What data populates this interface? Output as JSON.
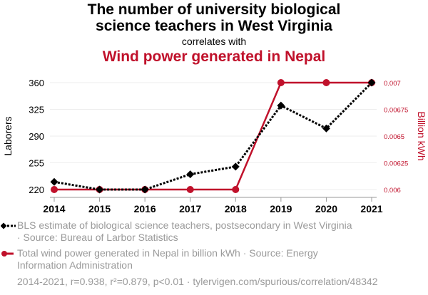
{
  "header": {
    "title_line1": "The number of university biological",
    "title_line2": "science teachers in West Virginia",
    "subtitle": "correlates with",
    "title2": "Wind power generated in Nepal"
  },
  "colors": {
    "series1": "#000000",
    "series2": "#c0112b",
    "grid": "#eeeeee",
    "muted": "#9a9a9a"
  },
  "chart_data": {
    "type": "line",
    "x": [
      "2014",
      "2015",
      "2016",
      "2017",
      "2018",
      "2019",
      "2020",
      "2021"
    ],
    "series": [
      {
        "name": "BLS estimate of biological science teachers, postsecondary in West Virginia",
        "axis": "left",
        "style": "dotted-diamond",
        "values": [
          230,
          220,
          220,
          240,
          250,
          330,
          300,
          360
        ]
      },
      {
        "name": "Total wind power generated in Nepal in billion kWh",
        "axis": "right",
        "style": "solid-circle",
        "values": [
          0.006,
          0.006,
          0.006,
          0.006,
          0.006,
          0.007,
          0.007,
          0.007
        ]
      }
    ],
    "left_axis": {
      "label": "Laborers",
      "ylim": [
        220,
        360
      ],
      "ticks": [
        "360",
        "325",
        "290",
        "255",
        "220"
      ],
      "tick_values": [
        360,
        325,
        290,
        255,
        220
      ]
    },
    "right_axis": {
      "label": "Billion kWh",
      "ylim": [
        0.006,
        0.007
      ],
      "ticks": [
        "0.007",
        "0.00675",
        "0.0065",
        "0.00625",
        "0.006"
      ],
      "tick_values": [
        0.007,
        0.00675,
        0.0065,
        0.00625,
        0.006
      ]
    },
    "grid": true,
    "legend_placement": "bottom"
  },
  "legend": {
    "item1_line1": "BLS estimate of biological science teachers, postsecondary in West Virginia",
    "item1_line2": "· Source: Bureau of Larbor Statistics",
    "item2_line1": "Total wind power generated in Nepal in billion kWh · Source: Energy",
    "item2_line2": "Information Administration"
  },
  "footer": "2014-2021, r=0.938, r²=0.879, p<0.01 · tylervigen.com/spurious/correlation/48342"
}
